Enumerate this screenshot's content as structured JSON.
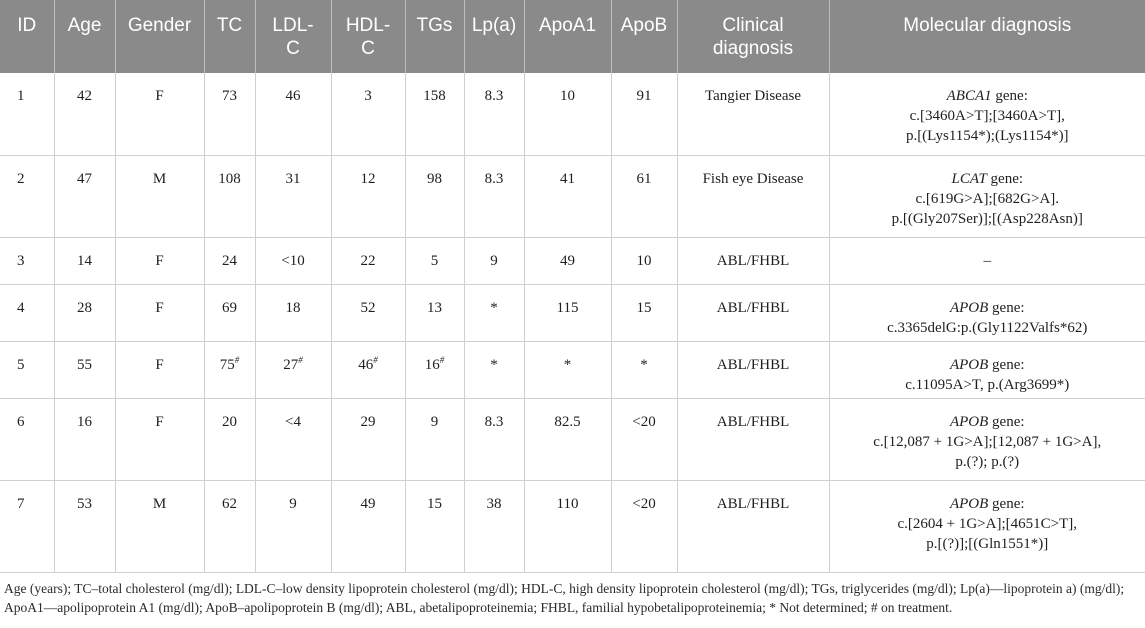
{
  "headers": [
    "ID",
    "Age",
    "Gender",
    "TC",
    "LDL-C",
    "HDL-C",
    "TGs",
    "Lp(a)",
    "ApoA1",
    "ApoB",
    "Clinical diagnosis",
    "Molecular diagnosis"
  ],
  "rows": [
    {
      "id": "1",
      "age": "42",
      "gender": "F",
      "tc": "73",
      "ldl": "46",
      "hdl": "3",
      "tgs": "158",
      "lpa": "8.3",
      "apoa1": "10",
      "apob": "91",
      "clinical": "Tangier Disease",
      "gene": "ABCA1",
      "gene_suffix": " gene:",
      "mol_lines": [
        "c.[3460A>T];[3460A>T],",
        "p.[(Lys1154*);(Lys1154*)]"
      ]
    },
    {
      "id": "2",
      "age": "47",
      "gender": "M",
      "tc": "108",
      "ldl": "31",
      "hdl": "12",
      "tgs": "98",
      "lpa": "8.3",
      "apoa1": "41",
      "apob": "61",
      "clinical": "Fish eye Disease",
      "gene": "LCAT",
      "gene_suffix": " gene:",
      "mol_lines": [
        "c.[619G>A];[682G>A].",
        "p.[(Gly207Ser)];[(Asp228Asn)]"
      ]
    },
    {
      "id": "3",
      "age": "14",
      "gender": "F",
      "tc": "24",
      "ldl": "<10",
      "hdl": "22",
      "tgs": "5",
      "lpa": "9",
      "apoa1": "49",
      "apob": "10",
      "clinical": "ABL/FHBL",
      "gene": "",
      "gene_suffix": "–",
      "mol_lines": []
    },
    {
      "id": "4",
      "age": "28",
      "gender": "F",
      "tc": "69",
      "ldl": "18",
      "hdl": "52",
      "tgs": "13",
      "lpa": "*",
      "apoa1": "115",
      "apob": "15",
      "clinical": "ABL/FHBL",
      "gene": "APOB",
      "gene_suffix": " gene:",
      "mol_lines": [
        "c.3365delG:p.(Gly1122Valfs*62)"
      ]
    },
    {
      "id": "5",
      "age": "55",
      "gender": "F",
      "tc": "75",
      "tc_sup": "#",
      "ldl": "27",
      "ldl_sup": "#",
      "hdl": "46",
      "hdl_sup": "#",
      "tgs": "16",
      "tgs_sup": "#",
      "lpa": "*",
      "apoa1": "*",
      "apob": "*",
      "clinical": "ABL/FHBL",
      "gene": "APOB",
      "gene_suffix": " gene:",
      "mol_lines": [
        "c.11095A>T, p.(Arg3699*)"
      ]
    },
    {
      "id": "6",
      "age": "16",
      "gender": "F",
      "tc": "20",
      "ldl": "<4",
      "hdl": "29",
      "tgs": "9",
      "lpa": "8.3",
      "apoa1": "82.5",
      "apob": "<20",
      "clinical": "ABL/FHBL",
      "gene": "APOB",
      "gene_suffix": " gene:",
      "mol_lines": [
        "c.[12,087 + 1G>A];[12,087 + 1G>A],",
        "p.(?); p.(?)"
      ]
    },
    {
      "id": "7",
      "age": "53",
      "gender": "M",
      "tc": "62",
      "ldl": "9",
      "hdl": "49",
      "tgs": "15",
      "lpa": "38",
      "apoa1": "110",
      "apob": "<20",
      "clinical": "ABL/FHBL",
      "gene": "APOB",
      "gene_suffix": " gene:",
      "mol_lines": [
        "c.[2604 + 1G>A];[4651C>T],",
        "p.[(?)];[(Gln1551*)]"
      ]
    }
  ],
  "footnote": "Age (years); TC–total cholesterol (mg/dl); LDL-C–low density lipoprotein cholesterol (mg/dl); HDL-C, high density lipoprotein cholesterol (mg/dl); TGs, triglycerides (mg/dl); Lp(a)—lipoprotein a) (mg/dl); ApoA1—apolipoprotein A1 (mg/dl); ApoB–apolipoprotein B (mg/dl); ABL, abetalipoproteinemia; FHBL, familial hypobetalipoproteinemia; * Not determined; # on treatment."
}
